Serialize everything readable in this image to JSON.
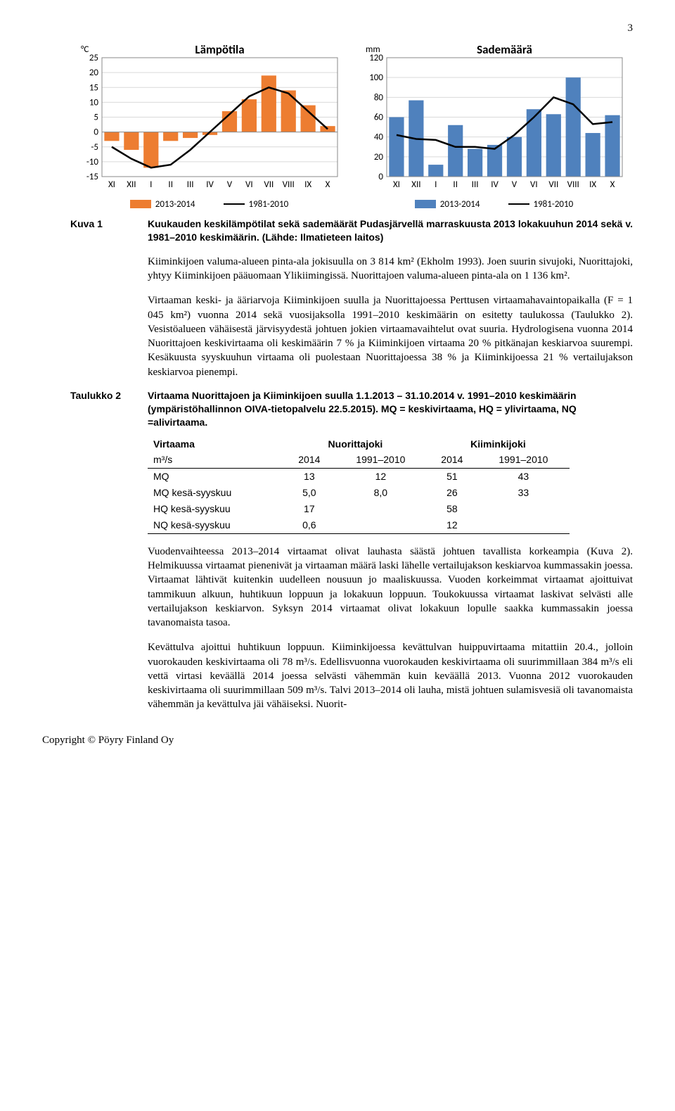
{
  "page_number": "3",
  "chart_temp": {
    "type": "bar+line",
    "y_unit": "°C",
    "title": "Lämpötila",
    "categories": [
      "XI",
      "XII",
      "I",
      "II",
      "III",
      "IV",
      "V",
      "VI",
      "VII",
      "VIII",
      "IX",
      "X"
    ],
    "bars": [
      -3,
      -6,
      -12,
      -3,
      -2,
      -1,
      7,
      11,
      19,
      14,
      9,
      2
    ],
    "line": [
      -5,
      -9,
      -12,
      -11,
      -6,
      0,
      6,
      12,
      15,
      13,
      7,
      1
    ],
    "ylim": [
      -15,
      25
    ],
    "ytick_step": 5,
    "bar_color": "#ed7d31",
    "line_color": "#000000",
    "background_color": "#ffffff",
    "legend_bar": "2013-2014",
    "legend_line": "1981-2010",
    "title_fontsize": 17,
    "label_fontsize": 13
  },
  "chart_prec": {
    "type": "bar+line",
    "y_unit": "mm",
    "title": "Sademäärä",
    "categories": [
      "XI",
      "XII",
      "I",
      "II",
      "III",
      "IV",
      "V",
      "VI",
      "VII",
      "VIII",
      "IX",
      "X"
    ],
    "bars": [
      60,
      77,
      12,
      52,
      28,
      32,
      40,
      68,
      63,
      100,
      44,
      62
    ],
    "line": [
      42,
      38,
      37,
      30,
      30,
      28,
      42,
      60,
      80,
      73,
      53,
      55
    ],
    "ylim": [
      0,
      120
    ],
    "ytick_step": 20,
    "bar_color": "#4f81bd",
    "line_color": "#000000",
    "background_color": "#ffffff",
    "legend_bar": "2013-2014",
    "legend_line": "1981-2010",
    "title_fontsize": 17,
    "label_fontsize": 13
  },
  "caption1": {
    "label": "Kuva 1",
    "text": "Kuukauden keskilämpötilat sekä sademäärät Pudasjärvellä marraskuusta 2013 lokakuuhun 2014 sekä v. 1981–2010 keskimäärin. (Lähde: Ilmatieteen laitos)"
  },
  "para1": "Kiiminkijoen valuma-alueen pinta-ala jokisuulla on 3 814 km² (Ekholm 1993). Joen suurin sivujoki, Nuorittajoki, yhtyy Kiiminkijoen pääuomaan Ylikiimingissä. Nuorittajoen valuma-alueen pinta-ala on 1 136 km².",
  "para2": "Virtaaman keski- ja ääriarvoja Kiiminkijoen suulla ja Nuorittajoessa Perttusen virtaamahavaintopaikalla (F = 1 045 km²) vuonna 2014 sekä vuosijaksolla 1991–2010 keskimäärin on esitetty taulukossa (Taulukko 2). Vesistöalueen vähäisestä järvisyydestä johtuen jokien virtaamavaihtelut ovat suuria. Hydrologisena vuonna 2014 Nuorittajoen keskivirtaama oli keskimäärin 7 % ja Kiiminkijoen virtaama 20 % pitkänajan keskiarvoa suurempi. Kesäkuusta syyskuuhun virtaama oli puolestaan Nuorittajoessa 38 % ja Kiiminkijoessa 21 % vertailujakson keskiarvoa pienempi.",
  "table_heading": {
    "label": "Taulukko 2",
    "text": "Virtaama Nuorittajoen ja Kiiminkijoen suulla 1.1.2013 – 31.10.2014 v. 1991–2010 keskimäärin (ympäristöhallinnon OIVA-tietopalvelu 22.5.2015). MQ = keskivirtaama, HQ = ylivirtaama, NQ =alivirtaama."
  },
  "table": {
    "columns": [
      "Virtaama",
      "Nuorittajoki",
      "",
      "Kiiminkijoki",
      ""
    ],
    "subcols": [
      "m³/s",
      "2014",
      "1991–2010",
      "2014",
      "1991–2010"
    ],
    "rows": [
      [
        "MQ",
        "13",
        "12",
        "51",
        "43"
      ],
      [
        "MQ kesä-syyskuu",
        "5,0",
        "8,0",
        "26",
        "33"
      ],
      [
        "HQ kesä-syyskuu",
        "17",
        "",
        "58",
        ""
      ],
      [
        "NQ kesä-syyskuu",
        "0,6",
        "",
        "12",
        ""
      ]
    ]
  },
  "para3": "Vuodenvaihteessa 2013–2014 virtaamat olivat lauhasta säästä johtuen tavallista korkeampia (Kuva 2). Helmikuussa virtaamat pienenivät ja virtaaman määrä laski lähelle vertailujakson keskiarvoa kummassakin joessa. Virtaamat lähtivät kuitenkin uudelleen nousuun jo maaliskuussa. Vuoden korkeimmat virtaamat ajoittuivat tammikuun alkuun, huhtikuun loppuun ja lokakuun loppuun. Toukokuussa virtaamat laskivat selvästi alle vertailujakson keskiarvon. Syksyn 2014 virtaamat olivat lokakuun lopulle saakka kummassakin joessa tavanomaista tasoa.",
  "para4": "Kevättulva ajoittui huhtikuun loppuun. Kiiminkijoessa kevättulvan huippuvirtaama mitattiin 20.4., jolloin vuorokauden keskivirtaama oli 78 m³/s. Edellisvuonna vuorokauden keskivirtaama oli suurimmillaan 384 m³/s eli vettä virtasi keväällä 2014 joessa selvästi vähemmän kuin keväällä 2013. Vuonna 2012 vuorokauden keskivirtaama oli suurimmillaan 509 m³/s. Talvi 2013–2014 oli lauha, mistä johtuen sulamisvesiä oli tavanomaista vähemmän ja kevättulva jäi vähäiseksi. Nuorit-",
  "footer": "Copyright © Pöyry Finland Oy"
}
